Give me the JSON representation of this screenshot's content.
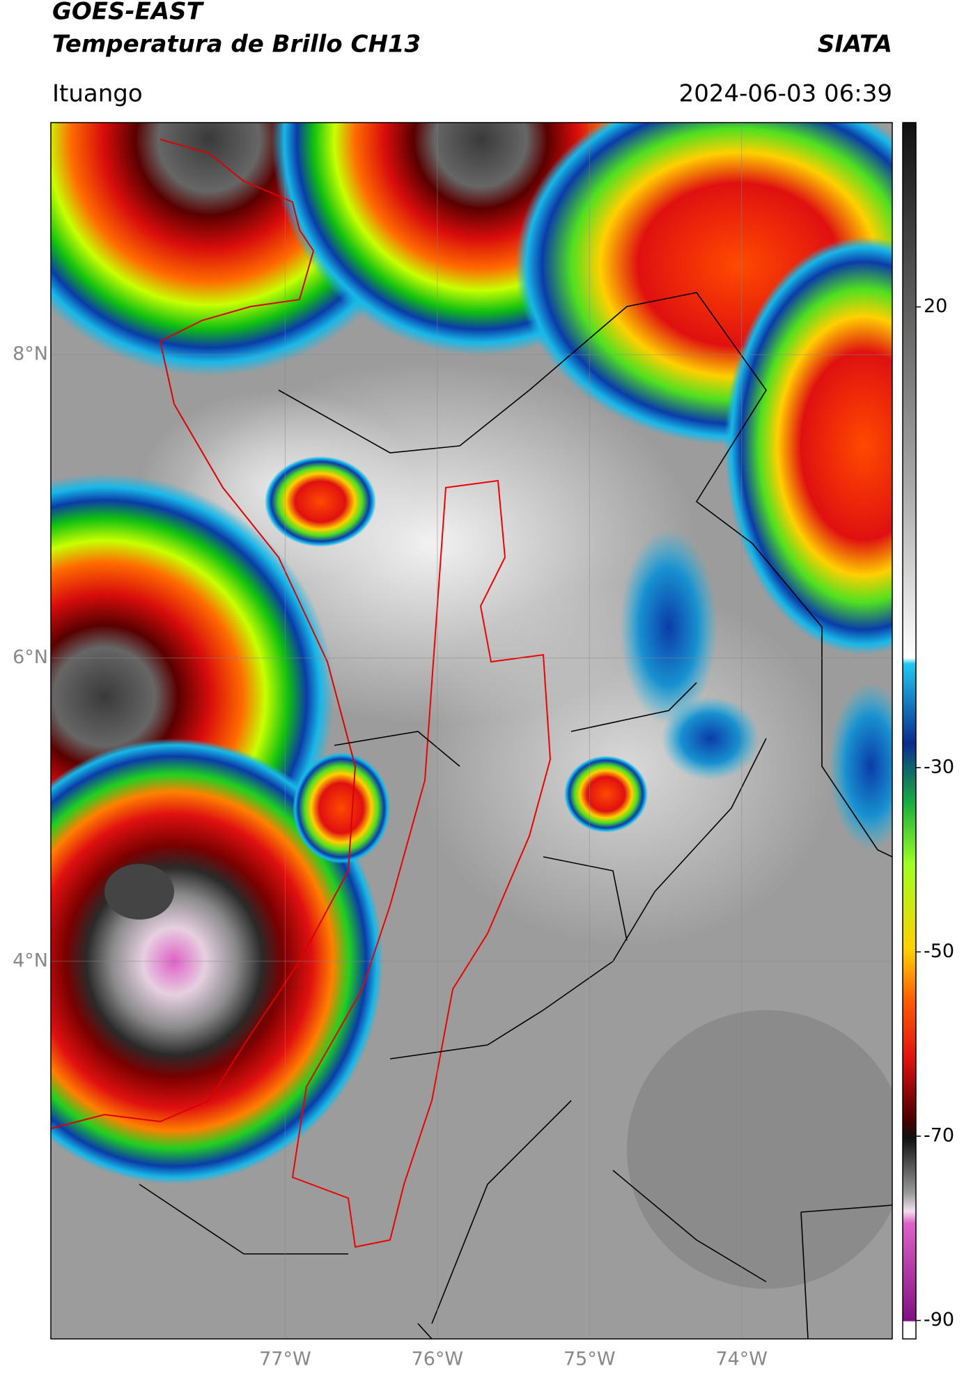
{
  "header": {
    "title": "GOES-EAST",
    "subtitle": "Temperatura de Brillo CH13",
    "brand": "SIATA",
    "location": "Ituango",
    "datetime": "2024-06-03 06:39"
  },
  "map": {
    "xlim": [
      -78.54,
      -73.01
    ],
    "ylim": [
      1.51,
      9.53
    ],
    "xticks": [
      {
        "value": -77,
        "label": "77°W"
      },
      {
        "value": -76,
        "label": "76°W"
      },
      {
        "value": -75,
        "label": "75°W"
      },
      {
        "value": -74,
        "label": "74°W"
      }
    ],
    "yticks": [
      {
        "value": 8,
        "label": "8°N"
      },
      {
        "value": 6,
        "label": "6°N"
      },
      {
        "value": 4,
        "label": "4°N"
      }
    ],
    "grid": true
  },
  "colorbar": {
    "lim": [
      -92,
      40
    ],
    "ticks": [
      20,
      -30,
      -50,
      -70,
      -90
    ]
  }
}
